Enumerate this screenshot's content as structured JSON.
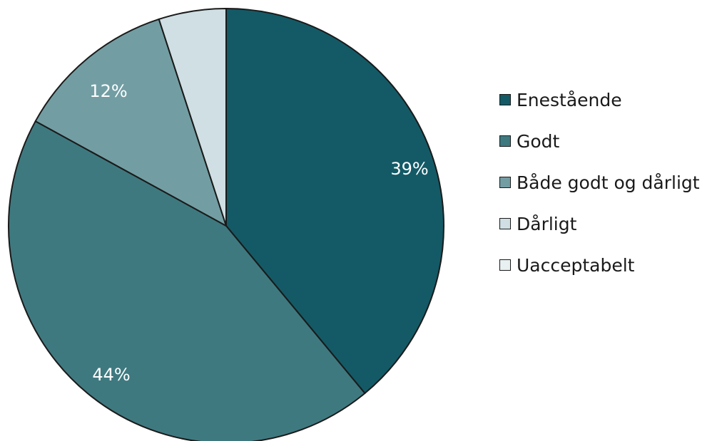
{
  "chart_data": {
    "type": "pie",
    "categories": [
      "Enestående",
      "Godt",
      "Både godt og dårligt",
      "Dårligt",
      "Uacceptabelt"
    ],
    "values": [
      39,
      44,
      12,
      5,
      0
    ],
    "data_labels": [
      "39%",
      "44%",
      "12%",
      "",
      ""
    ],
    "colors": [
      "#135A66",
      "#3F7980",
      "#729EA3",
      "#CFDFE3",
      "#E8F0F2"
    ],
    "legend_position": "right",
    "start_angle": "12 o'clock",
    "direction": "clockwise"
  }
}
